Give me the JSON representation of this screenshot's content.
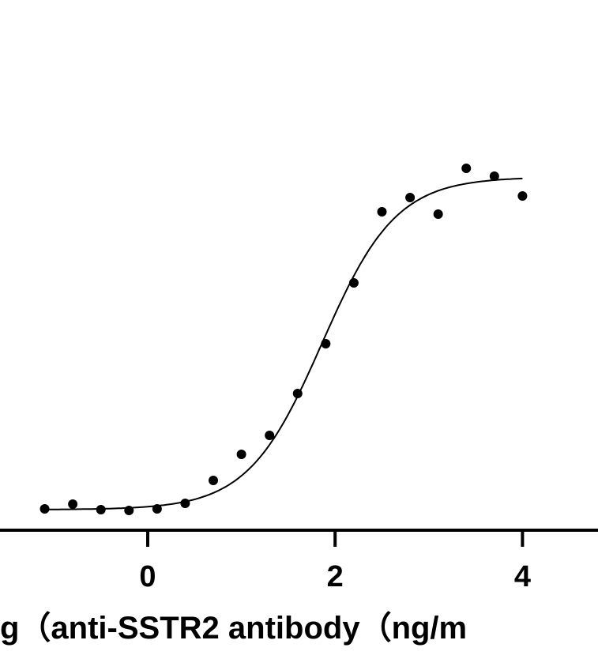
{
  "chart_data": {
    "type": "scatter",
    "title": "",
    "xlabel": "g（anti-SSTR2 antibody（ng/m",
    "ylabel": "",
    "xlim": [
      -1.6,
      4.8
    ],
    "ylim": [
      0,
      6.72
    ],
    "x_ticks": [
      0,
      2,
      4
    ],
    "x_tick_labels": [
      "0",
      "2",
      "4"
    ],
    "grid": false,
    "colors": {
      "points": "#000000",
      "curve": "#000000",
      "axis": "#000000"
    },
    "points": {
      "x": [
        -1.1,
        -0.8,
        -0.5,
        -0.2,
        0.1,
        0.4,
        0.7,
        1.0,
        1.3,
        1.6,
        1.9,
        2.2,
        2.5,
        2.8,
        3.1,
        3.4,
        3.7,
        4.0
      ],
      "y": [
        0.28,
        0.34,
        0.27,
        0.26,
        0.28,
        0.35,
        0.64,
        0.97,
        1.21,
        1.74,
        2.37,
        3.14,
        4.04,
        4.22,
        4.01,
        4.59,
        4.49,
        4.24
      ]
    },
    "fit_curve": {
      "model": "four-parameter logistic",
      "bottom": 0.27,
      "top": 4.48,
      "logEC50": 1.86,
      "hill_slope": 1.1,
      "x_range": [
        -1.1,
        4.0
      ]
    }
  }
}
